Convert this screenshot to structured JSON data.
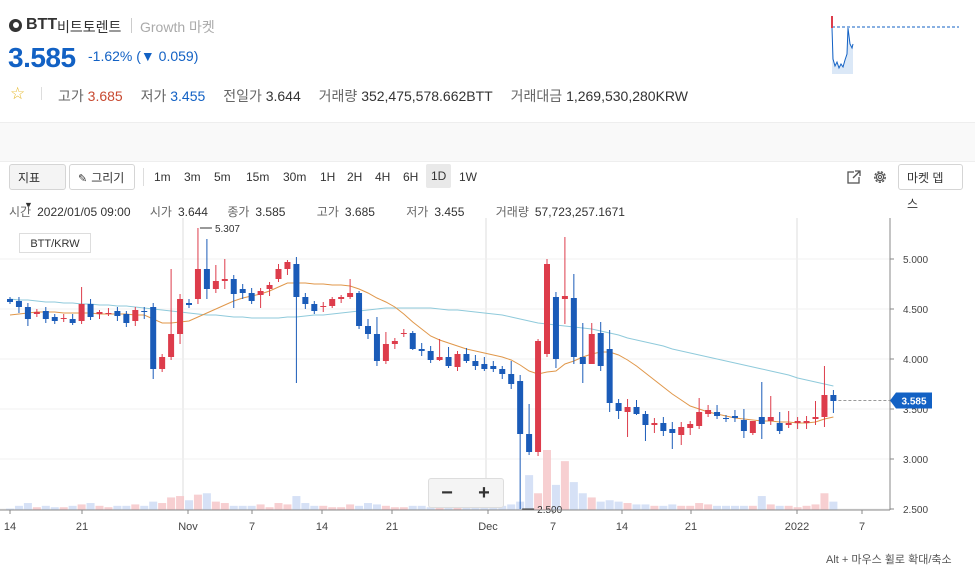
{
  "coin": {
    "symbol": "BTT",
    "name_kr": "비트토렌트",
    "market": "Growth 마켓"
  },
  "price": {
    "current": "3.585",
    "change_pct": "-1.62%",
    "change_abs": "(▼ 0.059)"
  },
  "stats": {
    "high_label": "고가",
    "high": "3.685",
    "low_label": "저가",
    "low": "3.455",
    "prev_label": "전일가",
    "prev": "3.644",
    "volume_label": "거래량",
    "volume": "352,475,578.662",
    "volume_unit": "BTT",
    "value_label": "거래대금",
    "value": "1,269,530,280",
    "value_unit": "KRW"
  },
  "toolbar": {
    "indicator_label": "지표",
    "draw_label": "그리기",
    "intervals": [
      "1m",
      "3m",
      "5m",
      "15m",
      "30m",
      "1H",
      "2H",
      "4H",
      "6H",
      "1D",
      "1W"
    ],
    "selected_interval": "1D",
    "depth_label": "마켓 뎁스"
  },
  "ohlc": {
    "time_label": "시간",
    "time": "2022/01/05 09:00",
    "open_label": "시가",
    "open": "3.644",
    "close_label": "종가",
    "close": "3.585",
    "high_label": "고가",
    "high": "3.685",
    "low_label": "저가",
    "low": "3.455",
    "vol_label": "거래량",
    "vol": "57,723,257.1671"
  },
  "pair_label": "BTT/KRW",
  "hint": "Alt + 마우스 휠로 확대/축소",
  "zoom": {
    "minus": "−",
    "plus": "+"
  },
  "colors": {
    "up": "#dd3c4b",
    "down": "#1a5bb8",
    "accent": "#1261c4",
    "ma_short": "#e0974a",
    "ma_long": "#8fcadb"
  },
  "chart_data": {
    "type": "candlestick",
    "y_ticks": [
      "2.500",
      "3.000",
      "3.500",
      "4.000",
      "4.500",
      "5.000"
    ],
    "x_ticks": [
      "14",
      "21",
      "Nov",
      "7",
      "14",
      "21",
      "Dec",
      "7",
      "14",
      "21",
      "2022",
      "7"
    ],
    "annotations": {
      "max": "5.307",
      "min": "2.500"
    },
    "last_price": "3.585",
    "candles": [
      [
        4.6,
        4.62,
        4.55,
        4.57
      ],
      [
        4.58,
        4.62,
        4.46,
        4.52
      ],
      [
        4.52,
        4.56,
        4.33,
        4.4
      ],
      [
        4.45,
        4.5,
        4.42,
        4.47
      ],
      [
        4.48,
        4.52,
        4.36,
        4.4
      ],
      [
        4.42,
        4.45,
        4.35,
        4.38
      ],
      [
        4.4,
        4.45,
        4.37,
        4.41
      ],
      [
        4.4,
        4.45,
        4.34,
        4.36
      ],
      [
        4.38,
        4.72,
        4.35,
        4.55
      ],
      [
        4.55,
        4.6,
        4.39,
        4.42
      ],
      [
        4.45,
        4.49,
        4.4,
        4.47
      ],
      [
        4.46,
        4.51,
        4.43,
        4.46
      ],
      [
        4.48,
        4.52,
        4.38,
        4.43
      ],
      [
        4.45,
        4.48,
        4.32,
        4.36
      ],
      [
        4.38,
        4.52,
        4.33,
        4.49
      ],
      [
        4.48,
        4.52,
        4.4,
        4.47
      ],
      [
        4.52,
        4.56,
        3.8,
        3.9
      ],
      [
        3.9,
        4.05,
        3.87,
        4.02
      ],
      [
        4.02,
        4.9,
        3.99,
        4.25
      ],
      [
        4.25,
        4.65,
        4.15,
        4.6
      ],
      [
        4.56,
        4.6,
        4.51,
        4.54
      ],
      [
        4.6,
        5.31,
        4.55,
        4.9
      ],
      [
        4.9,
        5.2,
        4.6,
        4.7
      ],
      [
        4.7,
        4.94,
        4.66,
        4.78
      ],
      [
        4.78,
        5.0,
        4.7,
        4.8
      ],
      [
        4.8,
        4.84,
        4.51,
        4.65
      ],
      [
        4.7,
        4.75,
        4.6,
        4.66
      ],
      [
        4.66,
        4.71,
        4.55,
        4.58
      ],
      [
        4.64,
        4.71,
        4.51,
        4.68
      ],
      [
        4.7,
        4.77,
        4.63,
        4.74
      ],
      [
        4.8,
        4.95,
        4.77,
        4.9
      ],
      [
        4.9,
        4.99,
        4.84,
        4.97
      ],
      [
        4.95,
        5.02,
        3.76,
        4.62
      ],
      [
        4.62,
        4.66,
        4.5,
        4.55
      ],
      [
        4.55,
        4.58,
        4.45,
        4.48
      ],
      [
        4.52,
        4.57,
        4.47,
        4.53
      ],
      [
        4.53,
        4.62,
        4.51,
        4.6
      ],
      [
        4.6,
        4.64,
        4.56,
        4.62
      ],
      [
        4.62,
        4.8,
        4.6,
        4.66
      ],
      [
        4.66,
        4.68,
        4.3,
        4.33
      ],
      [
        4.33,
        4.4,
        4.2,
        4.25
      ],
      [
        4.25,
        4.42,
        3.93,
        3.98
      ],
      [
        3.98,
        4.27,
        3.95,
        4.15
      ],
      [
        4.15,
        4.21,
        4.1,
        4.18
      ],
      [
        4.25,
        4.3,
        4.22,
        4.26
      ],
      [
        4.26,
        4.28,
        4.09,
        4.1
      ],
      [
        4.1,
        4.16,
        4.03,
        4.08
      ],
      [
        4.08,
        4.13,
        3.96,
        3.99
      ],
      [
        3.99,
        4.2,
        3.98,
        4.02
      ],
      [
        4.02,
        4.12,
        3.91,
        3.93
      ],
      [
        3.92,
        4.08,
        3.88,
        4.05
      ],
      [
        4.05,
        4.11,
        3.96,
        3.98
      ],
      [
        3.98,
        4.04,
        3.89,
        3.93
      ],
      [
        3.95,
        4.02,
        3.88,
        3.9
      ],
      [
        3.93,
        3.98,
        3.87,
        3.9
      ],
      [
        3.9,
        3.93,
        3.8,
        3.85
      ],
      [
        3.85,
        3.98,
        3.7,
        3.75
      ],
      [
        3.78,
        3.84,
        2.5,
        3.25
      ],
      [
        3.25,
        3.55,
        3.04,
        3.07
      ],
      [
        3.07,
        4.2,
        3.03,
        4.18
      ],
      [
        4.05,
        5.0,
        4.02,
        4.95
      ],
      [
        4.62,
        4.67,
        3.91,
        4.0
      ],
      [
        4.6,
        5.22,
        4.35,
        4.63
      ],
      [
        4.61,
        4.85,
        3.95,
        4.02
      ],
      [
        4.02,
        4.36,
        3.76,
        3.95
      ],
      [
        3.95,
        4.36,
        3.95,
        4.25
      ],
      [
        4.26,
        4.37,
        3.88,
        3.93
      ],
      [
        4.1,
        4.29,
        3.47,
        3.56
      ],
      [
        3.56,
        3.6,
        3.4,
        3.48
      ],
      [
        3.47,
        3.6,
        3.22,
        3.52
      ],
      [
        3.52,
        3.59,
        3.44,
        3.45
      ],
      [
        3.45,
        3.48,
        3.18,
        3.34
      ],
      [
        3.34,
        3.41,
        3.26,
        3.36
      ],
      [
        3.36,
        3.42,
        3.23,
        3.28
      ],
      [
        3.3,
        3.37,
        3.1,
        3.26
      ],
      [
        3.24,
        3.37,
        3.14,
        3.32
      ],
      [
        3.31,
        3.38,
        3.24,
        3.35
      ],
      [
        3.33,
        3.61,
        3.3,
        3.47
      ],
      [
        3.45,
        3.54,
        3.42,
        3.49
      ],
      [
        3.47,
        3.54,
        3.4,
        3.43
      ],
      [
        3.41,
        3.44,
        3.37,
        3.4
      ],
      [
        3.43,
        3.49,
        3.37,
        3.41
      ],
      [
        3.39,
        3.5,
        3.21,
        3.28
      ],
      [
        3.26,
        3.38,
        3.24,
        3.38
      ],
      [
        3.42,
        3.77,
        3.2,
        3.35
      ],
      [
        3.38,
        3.63,
        3.34,
        3.42
      ],
      [
        3.36,
        3.47,
        3.25,
        3.28
      ],
      [
        3.34,
        3.48,
        3.31,
        3.36
      ],
      [
        3.36,
        3.42,
        3.3,
        3.38
      ],
      [
        3.36,
        3.43,
        3.3,
        3.38
      ],
      [
        3.4,
        3.58,
        3.34,
        3.42
      ],
      [
        3.42,
        3.93,
        3.32,
        3.64
      ],
      [
        3.64,
        3.69,
        3.46,
        3.58
      ]
    ],
    "ma_short": [
      4.44,
      4.45,
      4.46,
      4.47,
      4.47,
      4.47,
      4.46,
      4.46,
      4.46,
      4.46,
      4.45,
      4.45,
      4.45,
      4.45,
      4.44,
      4.44,
      4.4,
      4.36,
      4.36,
      4.37,
      4.38,
      4.42,
      4.46,
      4.5,
      4.54,
      4.58,
      4.61,
      4.63,
      4.65,
      4.68,
      4.72,
      4.76,
      4.76,
      4.76,
      4.75,
      4.75,
      4.74,
      4.74,
      4.73,
      4.7,
      4.66,
      4.61,
      4.57,
      4.52,
      4.45,
      4.37,
      4.3,
      4.23,
      4.19,
      4.16,
      4.13,
      4.1,
      4.08,
      4.06,
      4.04,
      4.02,
      3.99,
      3.94,
      3.88,
      3.85,
      3.87,
      3.88,
      3.95,
      3.98,
      4.02,
      4.05,
      4.07,
      4.07,
      4.04,
      3.99,
      3.93,
      3.86,
      3.79,
      3.72,
      3.65,
      3.59,
      3.53,
      3.5,
      3.47,
      3.45,
      3.43,
      3.41,
      3.4,
      3.39,
      3.38,
      3.38,
      3.37,
      3.37,
      3.36,
      3.36,
      3.37,
      3.4,
      3.42
    ],
    "ma_long": [
      4.6,
      4.59,
      4.59,
      4.58,
      4.57,
      4.57,
      4.56,
      4.56,
      4.55,
      4.55,
      4.54,
      4.54,
      4.53,
      4.53,
      4.52,
      4.51,
      4.5,
      4.49,
      4.48,
      4.47,
      4.46,
      4.45,
      4.44,
      4.44,
      4.43,
      4.42,
      4.42,
      4.41,
      4.41,
      4.41,
      4.41,
      4.42,
      4.42,
      4.43,
      4.44,
      4.44,
      4.45,
      4.46,
      4.47,
      4.48,
      4.49,
      4.5,
      4.51,
      4.51,
      4.51,
      4.51,
      4.51,
      4.51,
      4.5,
      4.49,
      4.49,
      4.48,
      4.47,
      4.46,
      4.45,
      4.44,
      4.42,
      4.4,
      4.38,
      4.36,
      4.35,
      4.34,
      4.33,
      4.32,
      4.31,
      4.3,
      4.28,
      4.26,
      4.24,
      4.21,
      4.19,
      4.17,
      4.15,
      4.13,
      4.1,
      4.08,
      4.06,
      4.04,
      4.02,
      4.0,
      3.98,
      3.96,
      3.94,
      3.92,
      3.9,
      3.88,
      3.86,
      3.84,
      3.81,
      3.79,
      3.77,
      3.75,
      3.73
    ],
    "volume": [
      0.1,
      0.3,
      0.5,
      0.2,
      0.3,
      0.2,
      0.2,
      0.3,
      0.4,
      0.5,
      0.3,
      0.2,
      0.3,
      0.3,
      0.4,
      0.3,
      0.6,
      0.5,
      0.9,
      1.0,
      0.7,
      1.1,
      1.2,
      0.6,
      0.5,
      0.3,
      0.3,
      0.3,
      0.4,
      0.2,
      0.5,
      0.4,
      1.0,
      0.5,
      0.3,
      0.3,
      0.2,
      0.2,
      0.4,
      0.3,
      0.5,
      0.4,
      0.3,
      0.2,
      0.2,
      0.3,
      0.3,
      0.2,
      0.3,
      0.2,
      0.2,
      0.2,
      0.2,
      0.3,
      0.3,
      0.3,
      0.4,
      0.6,
      2.5,
      1.2,
      4.3,
      1.8,
      3.5,
      2.0,
      1.2,
      0.9,
      0.6,
      0.7,
      0.6,
      0.5,
      0.4,
      0.4,
      0.3,
      0.3,
      0.4,
      0.3,
      0.3,
      0.5,
      0.4,
      0.3,
      0.3,
      0.3,
      0.3,
      0.3,
      1.0,
      0.4,
      0.3,
      0.3,
      0.2,
      0.3,
      0.4,
      1.2,
      0.6
    ]
  }
}
